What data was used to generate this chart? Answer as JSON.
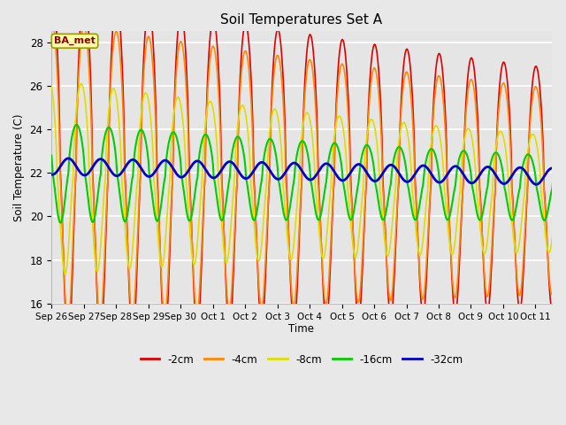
{
  "title": "Soil Temperatures Set A",
  "xlabel": "Time",
  "ylabel": "Soil Temperature (C)",
  "ylim": [
    16,
    28.5
  ],
  "background_color": "#e8e8e8",
  "plot_bg_color": "#e5e5e5",
  "grid_color": "#ffffff",
  "annotation_text": "BA_met",
  "annotation_bg": "#ffffaa",
  "annotation_border": "#999900",
  "annotation_text_color": "#880000",
  "series": {
    "-2cm": {
      "color": "#dd0000",
      "lw": 1.2
    },
    "-4cm": {
      "color": "#ff8800",
      "lw": 1.2
    },
    "-8cm": {
      "color": "#dddd00",
      "lw": 1.2
    },
    "-16cm": {
      "color": "#00cc00",
      "lw": 1.5
    },
    "-32cm": {
      "color": "#0000cc",
      "lw": 2.0
    }
  },
  "tick_labels": [
    "Sep 26",
    "Sep 27",
    "Sep 28",
    "Sep 29",
    "Sep 30",
    "Oct 1",
    "Oct 2",
    "Oct 3",
    "Oct 4",
    "Oct 5",
    "Oct 6",
    "Oct 7",
    "Oct 8",
    "Oct 9",
    "Oct 10",
    "Oct 11"
  ],
  "yticks": [
    16,
    18,
    20,
    22,
    24,
    26,
    28
  ],
  "n_days": 16
}
